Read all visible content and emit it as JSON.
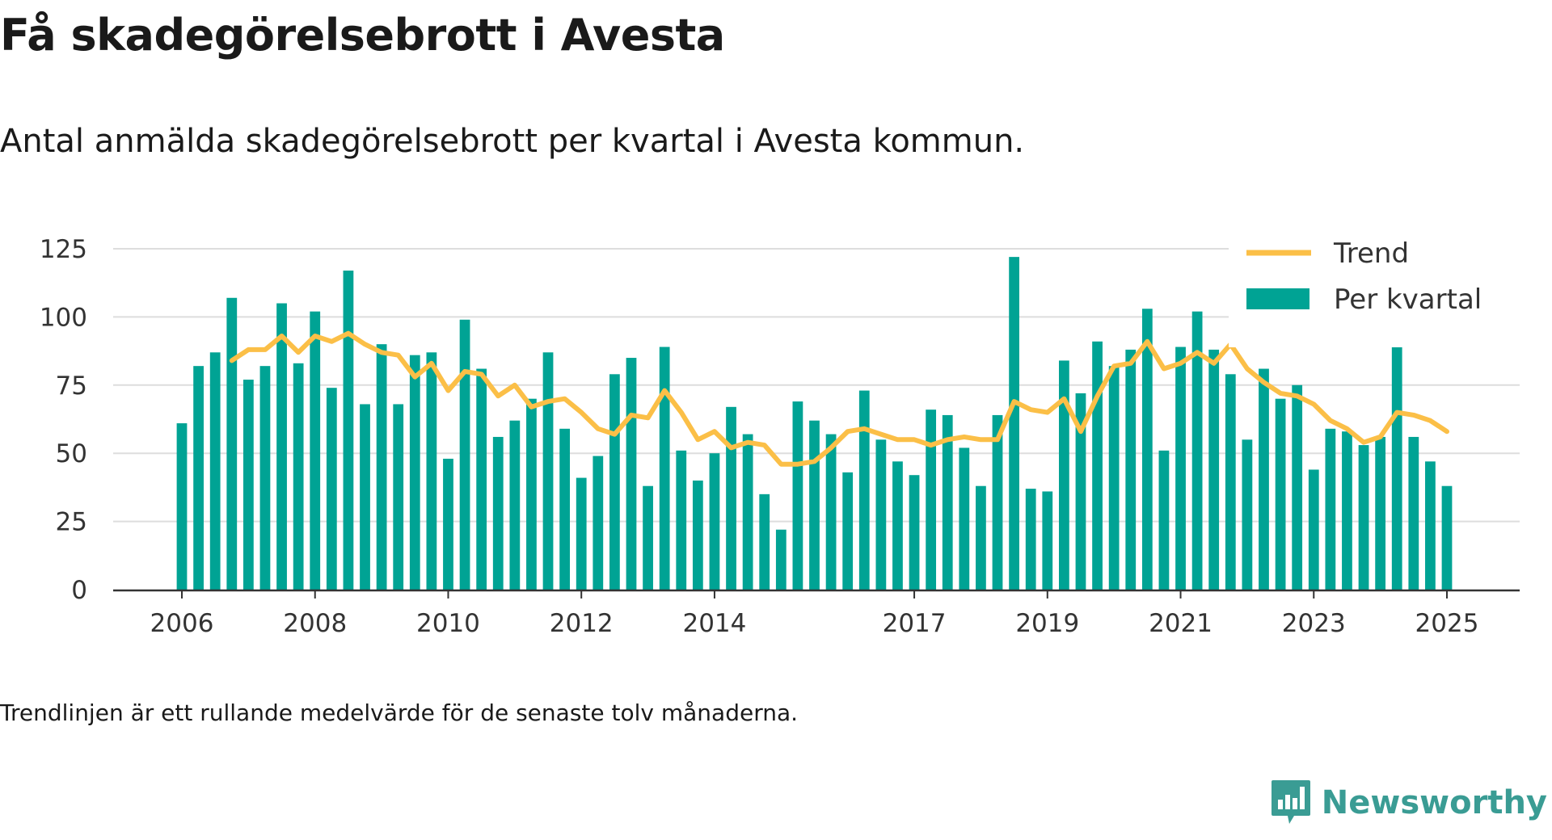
{
  "title": "Få skadegörelsebrott i Avesta",
  "subtitle": "Antal anmälda skadegörelsebrott per kvartal i Avesta kommun.",
  "footnote": "Trendlinjen är ett rullande medelvärde för de senaste tolv månaderna.",
  "brand": {
    "name": "Newsworthy",
    "icon": "newsworthy-logo-icon",
    "color": "#3a9c94"
  },
  "colors": {
    "bars": "#00a394",
    "trend": "#fbbf47",
    "grid": "#dddddd",
    "axis": "#333333"
  },
  "chart_data": {
    "type": "bar",
    "frequency": "quarterly",
    "start_period": "2006 Q1",
    "ylim": [
      0,
      130
    ],
    "yticks": [
      0,
      25,
      50,
      75,
      100,
      125
    ],
    "xtick_labels": [
      "2006",
      "2008",
      "2010",
      "2012",
      "2014",
      "2017",
      "2019",
      "2021",
      "2023",
      "2025"
    ],
    "grid": true,
    "legend_position": "top-right",
    "series": [
      {
        "name": "Per kvartal",
        "type": "bar",
        "values": [
          61,
          82,
          87,
          107,
          77,
          82,
          105,
          83,
          102,
          74,
          117,
          68,
          90,
          68,
          86,
          87,
          48,
          99,
          81,
          56,
          62,
          70,
          87,
          59,
          41,
          49,
          79,
          85,
          38,
          89,
          51,
          40,
          50,
          67,
          57,
          35,
          22,
          69,
          62,
          57,
          43,
          73,
          55,
          47,
          42,
          66,
          64,
          52,
          38,
          64,
          122,
          37,
          36,
          84,
          72,
          91,
          82,
          88,
          103,
          51,
          89,
          102,
          88,
          79,
          55,
          81,
          70,
          75,
          44,
          59,
          58,
          53,
          56,
          90,
          56,
          47,
          38
        ]
      },
      {
        "name": "Trend",
        "type": "line",
        "values": [
          null,
          null,
          null,
          84,
          88,
          88,
          93,
          87,
          93,
          91,
          94,
          90,
          87,
          86,
          78,
          83,
          73,
          80,
          79,
          71,
          75,
          67,
          69,
          70,
          65,
          59,
          57,
          64,
          63,
          73,
          65,
          55,
          58,
          52,
          54,
          53,
          46,
          46,
          47,
          52,
          58,
          59,
          57,
          55,
          55,
          53,
          55,
          56,
          55,
          55,
          69,
          66,
          65,
          70,
          58,
          71,
          82,
          83,
          91,
          81,
          83,
          87,
          83,
          90,
          81,
          76,
          72,
          71,
          68,
          62,
          59,
          54,
          56,
          65,
          64,
          62,
          58
        ]
      }
    ]
  }
}
